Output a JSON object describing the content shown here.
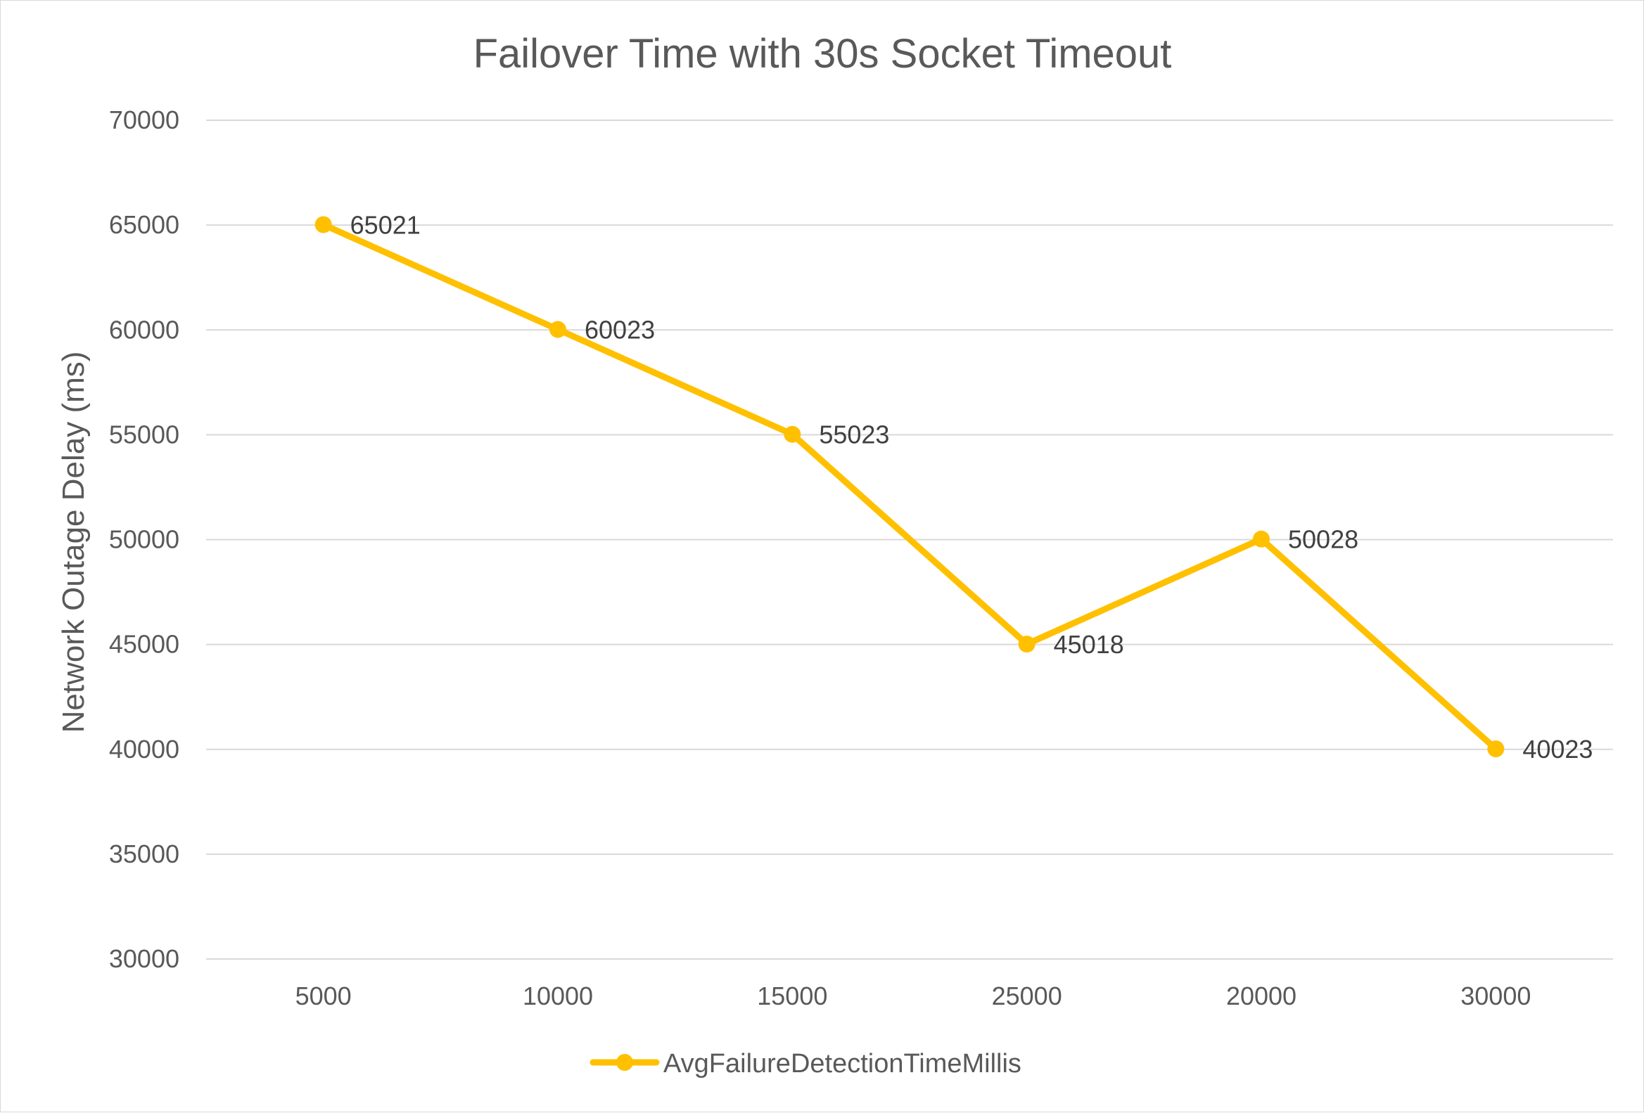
{
  "chart_data": {
    "type": "line",
    "title": "Failover Time with 30s Socket Timeout",
    "xlabel": "",
    "ylabel": "Network Outage Delay (ms)",
    "categories": [
      "5000",
      "10000",
      "15000",
      "25000",
      "20000",
      "30000"
    ],
    "series": [
      {
        "name": "AvgFailureDetectionTimeMillis",
        "values": [
          65021,
          60023,
          55023,
          45018,
          50028,
          40023
        ],
        "color": "#FFC000"
      }
    ],
    "ylim": [
      30000,
      70000
    ],
    "yticks": [
      "30000",
      "35000",
      "40000",
      "45000",
      "50000",
      "55000",
      "60000",
      "65000",
      "70000"
    ],
    "grid": true,
    "legend": "bottom",
    "data_labels": true
  }
}
